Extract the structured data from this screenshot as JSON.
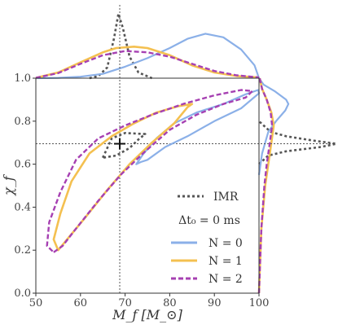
{
  "chart_data": {
    "type": "line",
    "xlabel": "M_f [M_⊙]",
    "ylabel": "χ_f",
    "xlim": [
      50,
      100
    ],
    "ylim": [
      0.0,
      1.0
    ],
    "x_ticks": [
      "50",
      "60",
      "70",
      "80",
      "90",
      "100"
    ],
    "y_ticks": [
      "0.0",
      "0.2",
      "0.4",
      "0.6",
      "0.8",
      "1.0"
    ],
    "grid": false,
    "imr_point": {
      "x": 68.8,
      "y": 0.695
    },
    "legend": {
      "placement": "lower-right",
      "imr_label": "IMR",
      "title": "Δt₀ = 0 ms",
      "entries": [
        "N = 0",
        "N = 1",
        "N = 2"
      ]
    },
    "colors": {
      "IMR": "#555555",
      "N0": "#8bb0e8",
      "N1": "#f4c050",
      "N2": "#a640b2"
    },
    "series": [
      {
        "name": "IMR",
        "contour": [
          [
            65,
            0.63
          ],
          [
            67,
            0.72
          ],
          [
            70,
            0.745
          ],
          [
            74.5,
            0.74
          ],
          [
            73,
            0.715
          ],
          [
            71,
            0.675
          ],
          [
            68,
            0.64
          ],
          [
            65,
            0.63
          ]
        ],
        "marginal_x": [
          [
            62,
            0
          ],
          [
            64,
            0.03
          ],
          [
            66,
            0.15
          ],
          [
            67.5,
            0.55
          ],
          [
            68.5,
            0.9
          ],
          [
            69.5,
            0.7
          ],
          [
            71,
            0.3
          ],
          [
            73,
            0.08
          ],
          [
            76,
            0
          ]
        ],
        "marginal_y": [
          [
            0.6,
            0
          ],
          [
            0.64,
            0.12
          ],
          [
            0.66,
            0.35
          ],
          [
            0.68,
            0.8
          ],
          [
            0.695,
            1.0
          ],
          [
            0.71,
            0.7
          ],
          [
            0.73,
            0.35
          ],
          [
            0.75,
            0.15
          ],
          [
            0.8,
            0
          ]
        ]
      },
      {
        "name": "N = 0",
        "contour": [
          [
            72.5,
            0.6
          ],
          [
            74,
            0.645
          ],
          [
            77,
            0.72
          ],
          [
            81,
            0.79
          ],
          [
            86,
            0.84
          ],
          [
            92,
            0.88
          ],
          [
            97,
            0.925
          ],
          [
            99.8,
            0.945
          ],
          [
            100,
            0.93
          ],
          [
            96,
            0.86
          ],
          [
            90,
            0.8
          ],
          [
            84,
            0.73
          ],
          [
            79,
            0.68
          ],
          [
            75,
            0.62
          ],
          [
            73.5,
            0.61
          ],
          [
            72.5,
            0.6
          ]
        ],
        "marginal_x": [
          [
            50,
            0
          ],
          [
            55,
            0.005
          ],
          [
            60,
            0.02
          ],
          [
            65,
            0.06
          ],
          [
            70,
            0.16
          ],
          [
            75,
            0.28
          ],
          [
            80,
            0.42
          ],
          [
            84,
            0.55
          ],
          [
            88,
            0.62
          ],
          [
            92,
            0.57
          ],
          [
            96,
            0.4
          ],
          [
            99,
            0.18
          ],
          [
            100,
            0
          ]
        ],
        "marginal_y": [
          [
            0.55,
            0
          ],
          [
            0.6,
            0.02
          ],
          [
            0.65,
            0.04
          ],
          [
            0.7,
            0.08
          ],
          [
            0.75,
            0.12
          ],
          [
            0.8,
            0.22
          ],
          [
            0.85,
            0.34
          ],
          [
            0.88,
            0.38
          ],
          [
            0.9,
            0.35
          ],
          [
            0.94,
            0.2
          ],
          [
            0.97,
            0.06
          ],
          [
            1.0,
            0
          ]
        ]
      },
      {
        "name": "N = 1",
        "contour": [
          [
            55,
            0.2
          ],
          [
            57,
            0.25
          ],
          [
            61,
            0.35
          ],
          [
            66,
            0.48
          ],
          [
            71,
            0.6
          ],
          [
            76,
            0.7
          ],
          [
            81,
            0.79
          ],
          [
            84,
            0.865
          ],
          [
            85,
            0.88
          ],
          [
            82,
            0.87
          ],
          [
            77,
            0.84
          ],
          [
            72,
            0.79
          ],
          [
            67,
            0.73
          ],
          [
            62,
            0.65
          ],
          [
            58,
            0.52
          ],
          [
            55.5,
            0.37
          ],
          [
            54,
            0.25
          ],
          [
            55,
            0.2
          ]
        ],
        "marginal_x": [
          [
            50,
            0.005
          ],
          [
            55,
            0.08
          ],
          [
            60,
            0.22
          ],
          [
            65,
            0.36
          ],
          [
            68,
            0.42
          ],
          [
            72,
            0.44
          ],
          [
            75,
            0.42
          ],
          [
            80,
            0.32
          ],
          [
            85,
            0.18
          ],
          [
            90,
            0.08
          ],
          [
            95,
            0.03
          ],
          [
            100,
            0.01
          ]
        ],
        "marginal_y": [
          [
            0.0,
            0
          ],
          [
            0.1,
            0.01
          ],
          [
            0.3,
            0.03
          ],
          [
            0.5,
            0.08
          ],
          [
            0.6,
            0.12
          ],
          [
            0.7,
            0.16
          ],
          [
            0.78,
            0.19
          ],
          [
            0.84,
            0.16
          ],
          [
            0.9,
            0.1
          ],
          [
            0.95,
            0.04
          ],
          [
            1.0,
            0.01
          ]
        ]
      },
      {
        "name": "N = 2",
        "contour": [
          [
            54,
            0.19
          ],
          [
            56,
            0.22
          ],
          [
            59,
            0.3
          ],
          [
            64,
            0.43
          ],
          [
            69,
            0.55
          ],
          [
            74,
            0.65
          ],
          [
            80,
            0.76
          ],
          [
            86,
            0.83
          ],
          [
            92,
            0.88
          ],
          [
            97,
            0.91
          ],
          [
            98.5,
            0.94
          ],
          [
            96,
            0.945
          ],
          [
            90,
            0.92
          ],
          [
            83,
            0.88
          ],
          [
            76,
            0.83
          ],
          [
            70,
            0.78
          ],
          [
            64,
            0.72
          ],
          [
            59,
            0.62
          ],
          [
            55.5,
            0.47
          ],
          [
            53,
            0.33
          ],
          [
            52.5,
            0.22
          ],
          [
            54,
            0.19
          ]
        ],
        "marginal_x": [
          [
            50,
            0.005
          ],
          [
            55,
            0.07
          ],
          [
            60,
            0.2
          ],
          [
            65,
            0.32
          ],
          [
            70,
            0.38
          ],
          [
            75,
            0.36
          ],
          [
            80,
            0.3
          ],
          [
            85,
            0.2
          ],
          [
            90,
            0.1
          ],
          [
            95,
            0.04
          ],
          [
            100,
            0.01
          ]
        ],
        "marginal_y": [
          [
            0.0,
            0
          ],
          [
            0.1,
            0.01
          ],
          [
            0.3,
            0.03
          ],
          [
            0.5,
            0.07
          ],
          [
            0.6,
            0.1
          ],
          [
            0.7,
            0.14
          ],
          [
            0.78,
            0.17
          ],
          [
            0.84,
            0.15
          ],
          [
            0.9,
            0.1
          ],
          [
            0.95,
            0.04
          ],
          [
            1.0,
            0.01
          ]
        ]
      }
    ]
  }
}
